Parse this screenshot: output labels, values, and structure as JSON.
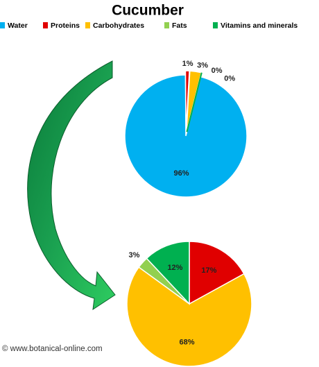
{
  "title": "Cucumber",
  "source": "© www.botanical-online.com",
  "chart_data": [
    {
      "type": "pie",
      "categories": [
        "Water",
        "Proteins",
        "Carbohydrates",
        "Fats",
        "Vitamins and minerals"
      ],
      "colors": [
        "#00b0f0",
        "#e00000",
        "#ffc000",
        "#92d050",
        "#00b050"
      ],
      "values": [
        96,
        1,
        3,
        0,
        0
      ],
      "value_labels": [
        "96%",
        "1%",
        "3%",
        "0%",
        "0%"
      ]
    },
    {
      "type": "pie",
      "values": [
        null,
        17,
        68,
        3,
        12
      ],
      "value_labels": [
        null,
        "17%",
        "68%",
        "3%",
        "12%"
      ]
    }
  ]
}
